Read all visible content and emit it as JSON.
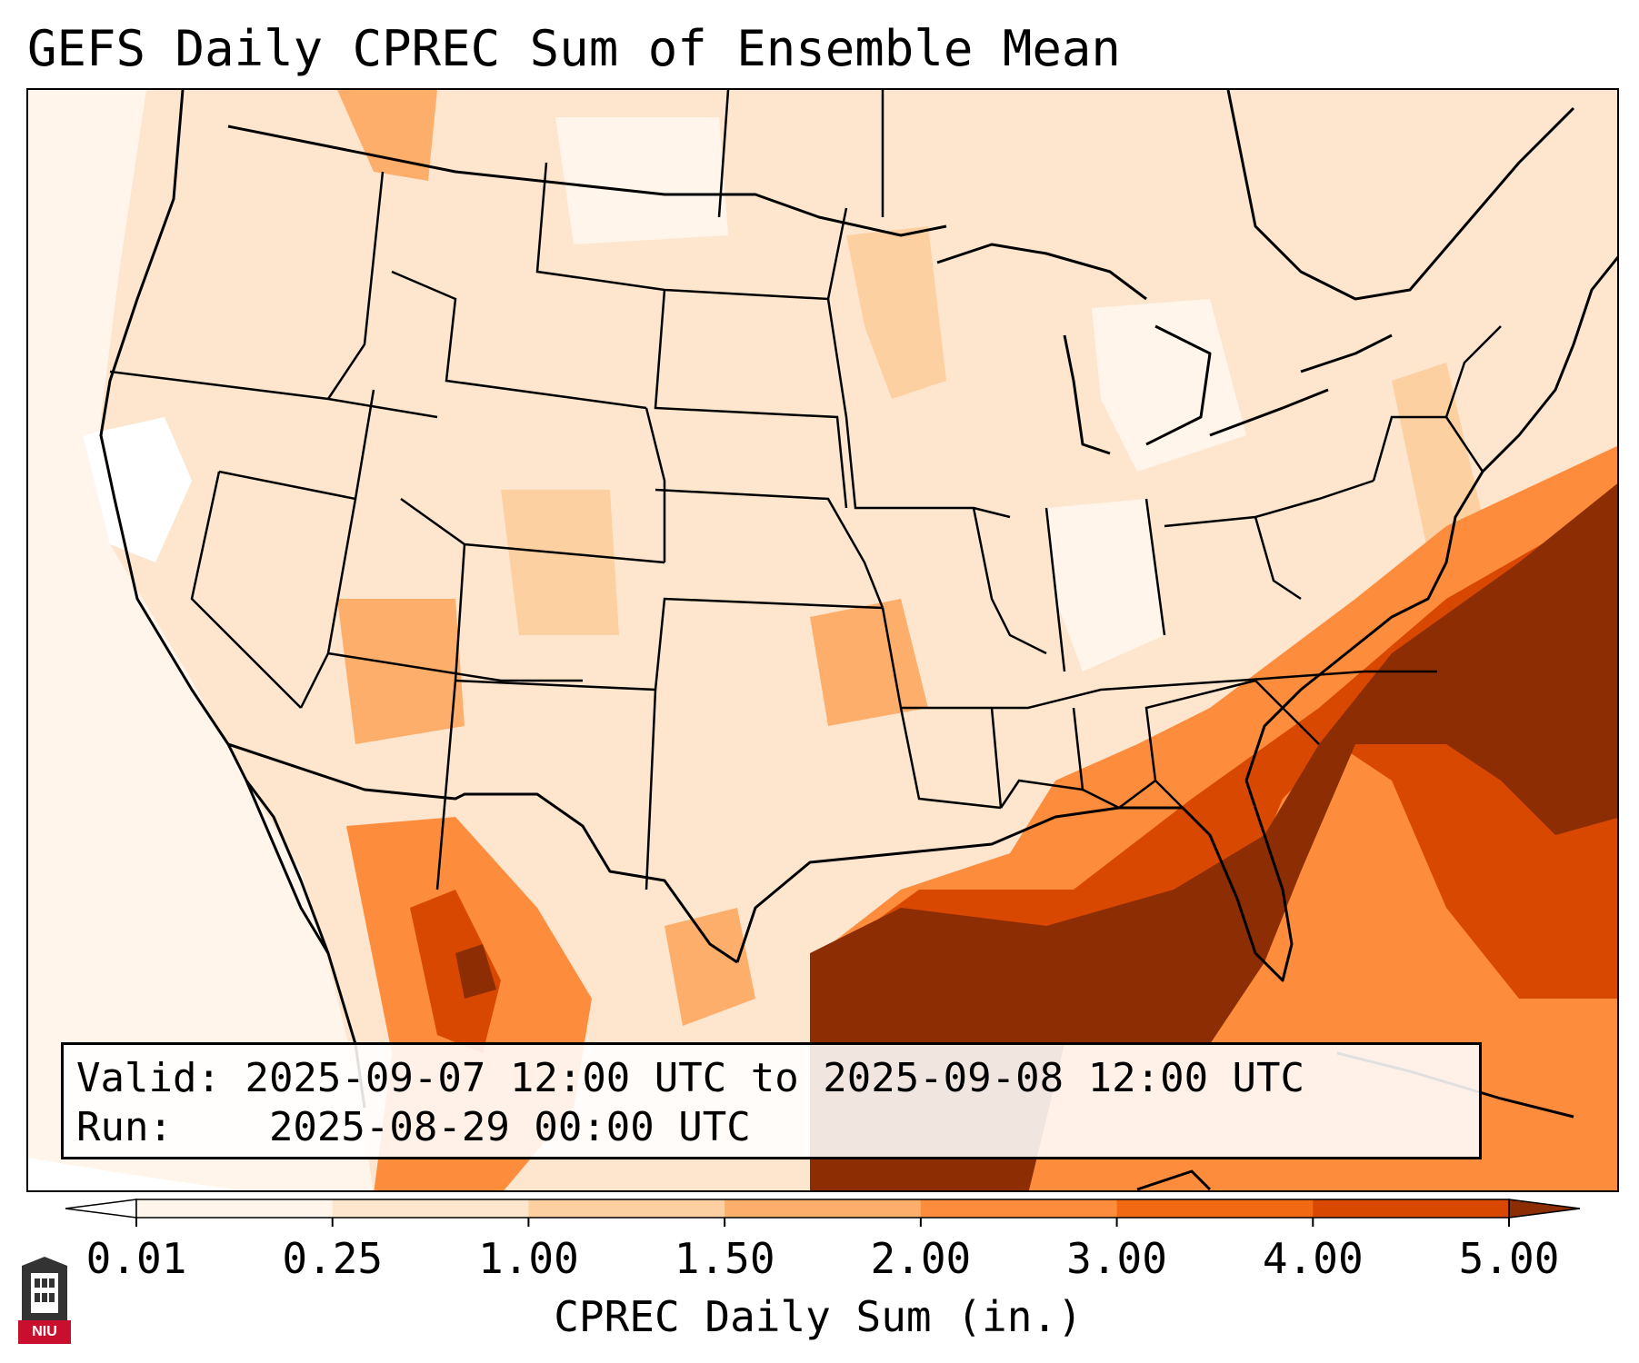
{
  "title": "GEFS Daily CPREC Sum of Ensemble Mean",
  "info": {
    "valid_label": "Valid:",
    "valid_value": "2025-09-07 12:00 UTC to 2025-09-08 12:00 UTC",
    "run_label": "Run:",
    "run_value": "2025-08-29 00:00 UTC"
  },
  "colorbar": {
    "label": "CPREC Daily Sum (in.)",
    "ticks": [
      "0.01",
      "0.25",
      "1.00",
      "1.50",
      "2.00",
      "3.00",
      "4.00",
      "5.00"
    ],
    "colors": [
      "#fff5eb",
      "#fee6ce",
      "#fdd0a2",
      "#fdae6b",
      "#fd8d3c",
      "#f16913",
      "#d94801",
      "#8c2d04"
    ],
    "under_color": "#ffffff",
    "over_color": "#8c2d04"
  },
  "logo": {
    "text": "NIU"
  },
  "colors": {
    "land_base": "#fee6ce",
    "ocean_base": "#fff5eb",
    "border": "#000000"
  }
}
